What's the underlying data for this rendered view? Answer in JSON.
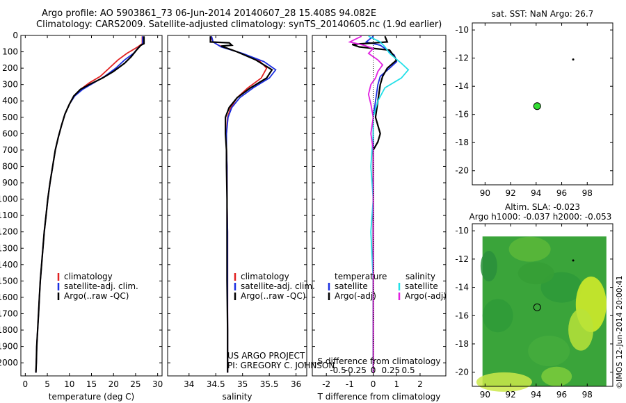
{
  "title": {
    "line1": "Argo profile: AO 5903861_73 06-Jun-2014 20140607_28 15.408S 94.082E",
    "line2": "Climatology: CARS2009. Satellite-adjusted climatology: synTS_20140605.nc (1.9d earlier)"
  },
  "colors": {
    "climatology": "#e02020",
    "satellite": "#1a2ee0",
    "argo": "#000000",
    "sal_satellite": "#22e0e8",
    "sal_argo": "#e020e0",
    "map_dot": "#33dd33"
  },
  "chart_data": [
    {
      "id": "temperature",
      "type": "line",
      "xlabel": "temperature (deg C)",
      "ylabel": "",
      "xlim": [
        -1,
        31
      ],
      "ylim": [
        2080,
        0
      ],
      "xticks": [
        0,
        5,
        10,
        15,
        20,
        25,
        30
      ],
      "yticks": [
        0,
        100,
        200,
        300,
        400,
        500,
        600,
        700,
        800,
        900,
        1000,
        1100,
        1200,
        1300,
        1400,
        1500,
        1600,
        1700,
        1800,
        1900,
        2000
      ],
      "legend": [
        "climatology",
        "satellite-adj. clim.",
        "Argo(..raw -QC)"
      ],
      "series": [
        {
          "name": "climatology",
          "color": "#e02020",
          "points": [
            [
              26.5,
              5
            ],
            [
              26.5,
              50
            ],
            [
              25.5,
              70
            ],
            [
              23,
              110
            ],
            [
              21,
              150
            ],
            [
              19,
              200
            ],
            [
              17,
              250
            ],
            [
              14.5,
              290
            ],
            [
              12.5,
              330
            ],
            [
              11,
              370
            ],
            [
              10,
              420
            ],
            [
              9,
              480
            ],
            [
              8.2,
              550
            ],
            [
              7.5,
              620
            ],
            [
              6.8,
              700
            ],
            [
              6.2,
              800
            ],
            [
              5.6,
              900
            ],
            [
              5.1,
              1000
            ],
            [
              4.7,
              1100
            ],
            [
              4.3,
              1200
            ],
            [
              4,
              1300
            ],
            [
              3.7,
              1400
            ],
            [
              3.4,
              1500
            ],
            [
              3.2,
              1600
            ],
            [
              3,
              1700
            ],
            [
              2.8,
              1800
            ],
            [
              2.6,
              1900
            ],
            [
              2.5,
              2000
            ],
            [
              2.4,
              2060
            ]
          ]
        },
        {
          "name": "satellite-adj. clim.",
          "color": "#1a2ee0",
          "points": [
            [
              26.6,
              5
            ],
            [
              26.6,
              50
            ],
            [
              25.6,
              75
            ],
            [
              24.5,
              110
            ],
            [
              22.5,
              150
            ],
            [
              20.5,
              200
            ],
            [
              18,
              250
            ],
            [
              15.5,
              290
            ],
            [
              13,
              330
            ],
            [
              11.2,
              370
            ],
            [
              10,
              420
            ],
            [
              9,
              480
            ],
            [
              8.2,
              550
            ],
            [
              7.5,
              620
            ],
            [
              6.8,
              700
            ],
            [
              6.2,
              800
            ],
            [
              5.6,
              900
            ],
            [
              5.1,
              1000
            ],
            [
              4.7,
              1100
            ],
            [
              4.3,
              1200
            ],
            [
              4,
              1300
            ],
            [
              3.7,
              1400
            ],
            [
              3.4,
              1500
            ],
            [
              3.2,
              1600
            ],
            [
              3,
              1700
            ],
            [
              2.8,
              1800
            ],
            [
              2.6,
              1900
            ],
            [
              2.5,
              2000
            ],
            [
              2.4,
              2060
            ]
          ]
        },
        {
          "name": "Argo(..raw -QC)",
          "color": "#000000",
          "points": [
            [
              26.9,
              5
            ],
            [
              26.9,
              50
            ],
            [
              26.2,
              60
            ],
            [
              25.2,
              90
            ],
            [
              24,
              130
            ],
            [
              22.5,
              170
            ],
            [
              20,
              220
            ],
            [
              17.5,
              260
            ],
            [
              14.5,
              300
            ],
            [
              12.5,
              330
            ],
            [
              11,
              370
            ],
            [
              10,
              420
            ],
            [
              9,
              480
            ],
            [
              8.2,
              550
            ],
            [
              7.5,
              620
            ],
            [
              6.8,
              700
            ],
            [
              6.2,
              800
            ],
            [
              5.6,
              900
            ],
            [
              5.1,
              1000
            ],
            [
              4.7,
              1100
            ],
            [
              4.3,
              1200
            ],
            [
              4,
              1300
            ],
            [
              3.7,
              1400
            ],
            [
              3.4,
              1500
            ],
            [
              3.2,
              1600
            ],
            [
              3,
              1700
            ],
            [
              2.8,
              1800
            ],
            [
              2.6,
              1900
            ],
            [
              2.5,
              2000
            ],
            [
              2.4,
              2060
            ]
          ]
        }
      ]
    },
    {
      "id": "salinity",
      "type": "line",
      "xlabel": "salinity",
      "xlim": [
        33.6,
        36.2
      ],
      "ylim": [
        2080,
        0
      ],
      "xticks": [
        34,
        34.5,
        35,
        35.5,
        36
      ],
      "legend": [
        "climatology",
        "satellite-adj. clim.",
        "Argo(..raw -QC)"
      ],
      "series": [
        {
          "name": "climatology",
          "color": "#e02020",
          "points": [
            [
              34.4,
              5
            ],
            [
              34.45,
              40
            ],
            [
              34.55,
              60
            ],
            [
              34.9,
              100
            ],
            [
              35.3,
              150
            ],
            [
              35.45,
              200
            ],
            [
              35.35,
              260
            ],
            [
              35.1,
              320
            ],
            [
              34.9,
              380
            ],
            [
              34.78,
              440
            ],
            [
              34.72,
              500
            ],
            [
              34.7,
              600
            ],
            [
              34.7,
              700
            ],
            [
              34.71,
              800
            ],
            [
              34.71,
              1000
            ],
            [
              34.72,
              1200
            ],
            [
              34.72,
              1500
            ],
            [
              34.72,
              1800
            ],
            [
              34.72,
              2060
            ]
          ]
        },
        {
          "name": "satellite-adj. clim.",
          "color": "#1a2ee0",
          "points": [
            [
              34.42,
              5
            ],
            [
              34.45,
              40
            ],
            [
              34.6,
              70
            ],
            [
              35.0,
              110
            ],
            [
              35.4,
              160
            ],
            [
              35.62,
              210
            ],
            [
              35.5,
              260
            ],
            [
              35.2,
              320
            ],
            [
              34.95,
              380
            ],
            [
              34.8,
              440
            ],
            [
              34.73,
              500
            ],
            [
              34.7,
              600
            ],
            [
              34.7,
              700
            ],
            [
              34.71,
              800
            ],
            [
              34.71,
              1000
            ],
            [
              34.72,
              1200
            ],
            [
              34.72,
              1500
            ],
            [
              34.72,
              1800
            ],
            [
              34.72,
              2060
            ]
          ]
        },
        {
          "name": "Argo(..raw -QC)",
          "color": "#000000",
          "points": [
            [
              34.4,
              5
            ],
            [
              34.4,
              40
            ],
            [
              34.75,
              45
            ],
            [
              34.8,
              60
            ],
            [
              34.6,
              65
            ],
            [
              34.9,
              100
            ],
            [
              35.25,
              150
            ],
            [
              35.55,
              210
            ],
            [
              35.45,
              260
            ],
            [
              35.15,
              320
            ],
            [
              34.9,
              380
            ],
            [
              34.75,
              440
            ],
            [
              34.68,
              500
            ],
            [
              34.68,
              600
            ],
            [
              34.7,
              700
            ],
            [
              34.7,
              800
            ],
            [
              34.71,
              1000
            ],
            [
              34.71,
              1200
            ],
            [
              34.71,
              1500
            ],
            [
              34.72,
              1800
            ],
            [
              34.72,
              2060
            ]
          ]
        }
      ]
    },
    {
      "id": "differences",
      "type": "line",
      "xlabel": "T difference from climatology",
      "xlabel_top": "S difference from climatology",
      "xlim": [
        -2.6,
        3.1
      ],
      "ylim": [
        2080,
        0
      ],
      "xticks": [
        -2,
        -1,
        0,
        1,
        2
      ],
      "xtick_labels_s": [
        "-0.5",
        "-0.25",
        "0",
        "0.25",
        "0.5"
      ],
      "legend_headers": [
        "temperature",
        "salinity"
      ],
      "legend": [
        "satellite",
        "Argo(-adj)",
        "satellite",
        "Argo(-adj)"
      ],
      "series": [
        {
          "name": "T satellite",
          "color": "#1a2ee0",
          "points": [
            [
              0,
              5
            ],
            [
              -0.3,
              40
            ],
            [
              0.3,
              60
            ],
            [
              0.6,
              90
            ],
            [
              0.9,
              120
            ],
            [
              1.0,
              160
            ],
            [
              0.7,
              200
            ],
            [
              0.3,
              250
            ],
            [
              0.2,
              300
            ],
            [
              0.1,
              400
            ],
            [
              0,
              500
            ],
            [
              0,
              700
            ],
            [
              0,
              1000
            ],
            [
              0,
              1500
            ],
            [
              0,
              2060
            ]
          ]
        },
        {
          "name": "T Argo(-adj)",
          "color": "#000000",
          "points": [
            [
              0.5,
              5
            ],
            [
              0.6,
              40
            ],
            [
              -0.9,
              55
            ],
            [
              -0.6,
              70
            ],
            [
              0.7,
              90
            ],
            [
              1.0,
              150
            ],
            [
              0.6,
              200
            ],
            [
              0.4,
              250
            ],
            [
              0.3,
              300
            ],
            [
              0.2,
              400
            ],
            [
              0.1,
              500
            ],
            [
              0.3,
              600
            ],
            [
              0.2,
              650
            ],
            [
              0,
              700
            ],
            [
              0,
              1000
            ],
            [
              0,
              1500
            ],
            [
              0,
              2060
            ]
          ]
        },
        {
          "name": "S satellite",
          "color": "#22e0e8",
          "points": [
            [
              -0.2,
              5
            ],
            [
              0.3,
              40
            ],
            [
              0.5,
              70
            ],
            [
              0.7,
              110
            ],
            [
              1.2,
              170
            ],
            [
              1.5,
              210
            ],
            [
              1.2,
              260
            ],
            [
              0.5,
              320
            ],
            [
              0.2,
              400
            ],
            [
              0,
              500
            ],
            [
              0,
              600
            ],
            [
              -0.1,
              800
            ],
            [
              0,
              1000
            ],
            [
              -0.1,
              1200
            ],
            [
              0,
              1500
            ],
            [
              0,
              2060
            ]
          ]
        },
        {
          "name": "S Argo(-adj)",
          "color": "#e020e0",
          "points": [
            [
              -0.5,
              5
            ],
            [
              -1.0,
              40
            ],
            [
              -0.4,
              60
            ],
            [
              0,
              80
            ],
            [
              -0.2,
              110
            ],
            [
              0.2,
              150
            ],
            [
              0.4,
              180
            ],
            [
              0.2,
              220
            ],
            [
              0.1,
              260
            ],
            [
              -0.1,
              300
            ],
            [
              -0.2,
              360
            ],
            [
              -0.1,
              420
            ],
            [
              0,
              500
            ],
            [
              -0.1,
              600
            ],
            [
              0,
              700
            ],
            [
              0,
              1000
            ],
            [
              0,
              1500
            ],
            [
              0,
              2060
            ]
          ]
        }
      ]
    },
    {
      "id": "sst_map",
      "type": "scatter",
      "title": "sat. SST: NaN Argo: 26.7",
      "xlim": [
        89,
        100
      ],
      "ylim": [
        -21,
        -9.5
      ],
      "xticks": [
        90,
        92,
        94,
        96,
        98
      ],
      "yticks": [
        -10,
        -12,
        -14,
        -16,
        -18,
        -20
      ],
      "points": [
        [
          94.08,
          -15.41
        ],
        [
          96.9,
          -12.1
        ]
      ]
    },
    {
      "id": "sla_map",
      "type": "heatmap",
      "title_line1": "Altim. SLA: -0.023",
      "title_line2": "Argo h1000: -0.037 h2000: -0.053",
      "xlim": [
        89,
        100
      ],
      "ylim": [
        -21,
        -9.5
      ],
      "xticks": [
        90,
        92,
        94,
        96,
        98
      ],
      "yticks": [
        -10,
        -12,
        -14,
        -16,
        -18,
        -20
      ],
      "points": [
        [
          94.08,
          -15.41
        ],
        [
          96.9,
          -12.1
        ]
      ]
    }
  ],
  "annotations": {
    "project": "US ARGO PROJECT",
    "pi": "PI: GREGORY C. JOHNSON",
    "imos": "©IMOS 12-Jun-2014 20:00:41"
  }
}
